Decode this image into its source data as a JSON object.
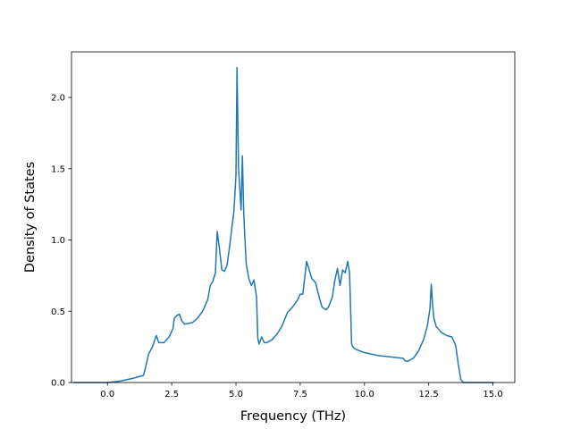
{
  "chart_data": {
    "type": "line",
    "title": "",
    "xlabel": "Frequency (THz)",
    "ylabel": "Density of States",
    "xlim": [
      -1.4,
      15.85
    ],
    "ylim": [
      0.0,
      2.32
    ],
    "xticks": [
      0.0,
      2.5,
      5.0,
      7.5,
      10.0,
      12.5,
      15.0
    ],
    "xtick_labels": [
      "0.0",
      "2.5",
      "5.0",
      "7.5",
      "10.0",
      "12.5",
      "15.0"
    ],
    "yticks": [
      0.0,
      0.5,
      1.0,
      1.5,
      2.0
    ],
    "ytick_labels": [
      "0.0",
      "0.5",
      "1.0",
      "1.5",
      "2.0"
    ],
    "grid": false,
    "legend": "none",
    "series": [
      {
        "color": "#1f77b4",
        "x": [
          -1.3,
          0.0,
          0.5,
          1.0,
          1.4,
          1.5,
          1.6,
          1.75,
          1.9,
          2.0,
          2.2,
          2.4,
          2.55,
          2.6,
          2.7,
          2.8,
          2.9,
          3.0,
          3.3,
          3.5,
          3.7,
          3.9,
          4.0,
          4.1,
          4.2,
          4.27,
          4.35,
          4.45,
          4.55,
          4.65,
          4.75,
          4.85,
          4.92,
          5.0,
          5.04,
          5.1,
          5.2,
          5.25,
          5.3,
          5.35,
          5.4,
          5.5,
          5.6,
          5.7,
          5.8,
          5.85,
          5.9,
          6.0,
          6.1,
          6.2,
          6.4,
          6.6,
          6.8,
          7.0,
          7.2,
          7.4,
          7.5,
          7.6,
          7.75,
          7.85,
          7.95,
          8.1,
          8.25,
          8.35,
          8.5,
          8.6,
          8.75,
          8.85,
          8.95,
          9.05,
          9.15,
          9.25,
          9.35,
          9.42,
          9.5,
          9.55,
          9.6,
          9.7,
          10.0,
          10.5,
          11.0,
          11.5,
          11.6,
          11.7,
          11.9,
          12.1,
          12.3,
          12.45,
          12.55,
          12.6,
          12.65,
          12.7,
          12.8,
          13.0,
          13.2,
          13.4,
          13.55,
          13.65,
          13.75,
          13.85,
          14.0,
          15.0
        ],
        "y": [
          0.0,
          0.0,
          0.01,
          0.03,
          0.05,
          0.12,
          0.2,
          0.25,
          0.33,
          0.28,
          0.28,
          0.32,
          0.38,
          0.45,
          0.47,
          0.48,
          0.43,
          0.41,
          0.42,
          0.45,
          0.5,
          0.58,
          0.68,
          0.71,
          0.77,
          1.06,
          0.95,
          0.79,
          0.78,
          0.82,
          0.95,
          1.1,
          1.2,
          1.45,
          2.21,
          1.5,
          1.21,
          1.59,
          1.2,
          1.0,
          0.83,
          0.73,
          0.68,
          0.72,
          0.6,
          0.31,
          0.27,
          0.32,
          0.28,
          0.28,
          0.3,
          0.34,
          0.4,
          0.49,
          0.53,
          0.58,
          0.62,
          0.62,
          0.85,
          0.79,
          0.73,
          0.7,
          0.59,
          0.53,
          0.51,
          0.53,
          0.6,
          0.72,
          0.8,
          0.68,
          0.79,
          0.77,
          0.85,
          0.77,
          0.27,
          0.25,
          0.24,
          0.23,
          0.21,
          0.19,
          0.18,
          0.17,
          0.15,
          0.15,
          0.17,
          0.22,
          0.3,
          0.4,
          0.52,
          0.69,
          0.55,
          0.45,
          0.39,
          0.35,
          0.33,
          0.32,
          0.26,
          0.13,
          0.02,
          0.0,
          0.0,
          0.0
        ]
      }
    ]
  }
}
